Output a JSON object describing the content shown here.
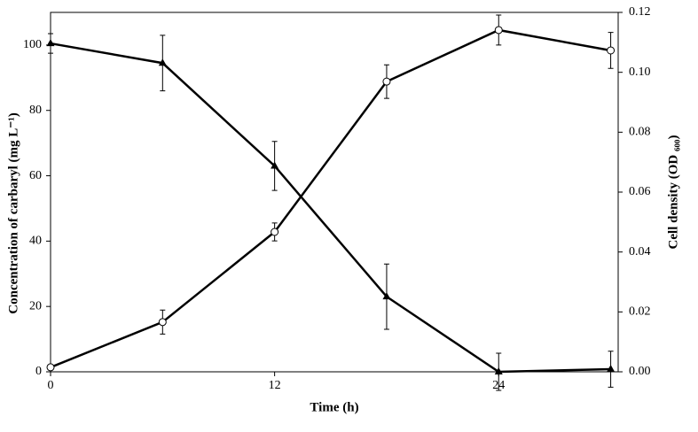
{
  "chart_data": {
    "type": "line",
    "x_label": "Time (h)",
    "y_label": "Concentration of carbaryl (mg L⁻¹)",
    "y2_label": "Cell density (OD ₆₀₀)",
    "x": [
      0,
      6,
      12,
      18,
      24,
      30
    ],
    "xlim": [
      0,
      30.4
    ],
    "xticks": [
      0,
      12,
      24
    ],
    "ylim": [
      0,
      110
    ],
    "yticks": [
      0,
      20,
      40,
      60,
      80,
      100
    ],
    "y2lim": [
      0,
      0.12
    ],
    "y2ticks": [
      {
        "value": 0,
        "label": "0.00"
      },
      {
        "value": 0.02,
        "label": "0.02"
      },
      {
        "value": 0.04,
        "label": "0.04"
      },
      {
        "value": 0.06,
        "label": "0.06"
      },
      {
        "value": 0.08,
        "label": "0.08"
      },
      {
        "value": 0.1,
        "label": "0.10"
      },
      {
        "value": 0.12,
        "label": "0.12"
      }
    ],
    "series": [
      {
        "name": "Carbaryl",
        "color": "#000000",
        "marker": "triangle",
        "values": [
          100.5,
          94.5,
          63,
          23,
          0,
          0.8
        ],
        "errors": [
          3,
          8.5,
          7.5,
          10,
          5.7,
          5.5
        ]
      },
      {
        "name": "Cell density",
        "color": "#000000",
        "marker": "circle",
        "axis": "y2",
        "values": [
          0.0015,
          0.0166,
          0.0467,
          0.0969,
          0.1141,
          0.1073
        ],
        "errors": [
          0,
          0.004,
          0.003,
          0.0056,
          0.005,
          0.006
        ]
      }
    ]
  }
}
